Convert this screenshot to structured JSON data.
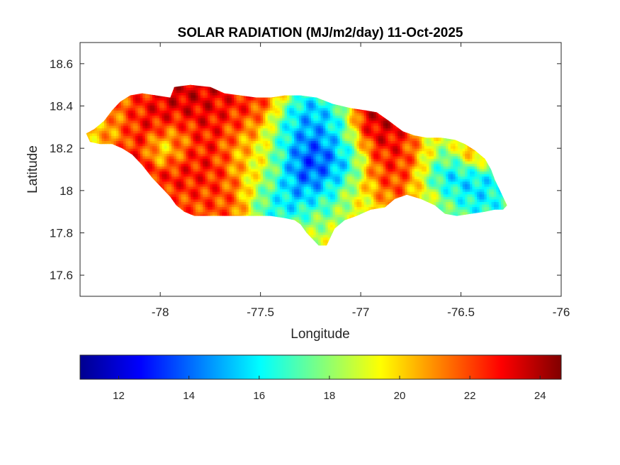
{
  "chart_data": {
    "type": "heatmap",
    "title": "SOLAR RADIATION (MJ/m2/day) 11-Oct-2025",
    "xlabel": "Longitude",
    "ylabel": "Latitude",
    "xlim": [
      -78.4,
      -76.0
    ],
    "ylim": [
      17.5,
      18.7
    ],
    "xticks": [
      -78,
      -77.5,
      -77,
      -76.5,
      -76
    ],
    "xtick_labels": [
      "-78",
      "-77.5",
      "-77",
      "-76.5",
      "-76"
    ],
    "yticks": [
      17.6,
      17.8,
      18.0,
      18.2,
      18.4,
      18.6
    ],
    "ytick_labels": [
      "17.6",
      "17.8",
      "18",
      "18.2",
      "18.4",
      "18.6"
    ],
    "grid": false,
    "colormap": "jet",
    "colorbar": {
      "orientation": "horizontal",
      "location": "below",
      "clim": [
        10.9,
        24.6
      ],
      "ticks": [
        12,
        14,
        16,
        18,
        20,
        22,
        24
      ],
      "tick_labels": [
        "12",
        "14",
        "16",
        "18",
        "20",
        "22",
        "24"
      ]
    },
    "outline": [
      [
        -78.37,
        18.27
      ],
      [
        -78.33,
        18.29
      ],
      [
        -78.28,
        18.33
      ],
      [
        -78.24,
        18.38
      ],
      [
        -78.2,
        18.42
      ],
      [
        -78.15,
        18.45
      ],
      [
        -78.09,
        18.46
      ],
      [
        -78.02,
        18.45
      ],
      [
        -77.95,
        18.44
      ],
      [
        -77.93,
        18.49
      ],
      [
        -77.85,
        18.5
      ],
      [
        -77.75,
        18.49
      ],
      [
        -77.68,
        18.46
      ],
      [
        -77.6,
        18.45
      ],
      [
        -77.52,
        18.44
      ],
      [
        -77.45,
        18.44
      ],
      [
        -77.38,
        18.45
      ],
      [
        -77.3,
        18.45
      ],
      [
        -77.22,
        18.44
      ],
      [
        -77.14,
        18.41
      ],
      [
        -77.05,
        18.39
      ],
      [
        -76.98,
        18.38
      ],
      [
        -76.92,
        18.37
      ],
      [
        -76.86,
        18.33
      ],
      [
        -76.79,
        18.28
      ],
      [
        -76.73,
        18.26
      ],
      [
        -76.67,
        18.25
      ],
      [
        -76.6,
        18.25
      ],
      [
        -76.53,
        18.24
      ],
      [
        -76.48,
        18.22
      ],
      [
        -76.43,
        18.19
      ],
      [
        -76.38,
        18.15
      ],
      [
        -76.35,
        18.1
      ],
      [
        -76.33,
        18.05
      ],
      [
        -76.3,
        17.99
      ],
      [
        -76.27,
        17.93
      ],
      [
        -76.29,
        17.91
      ],
      [
        -76.33,
        17.91
      ],
      [
        -76.38,
        17.9
      ],
      [
        -76.45,
        17.89
      ],
      [
        -76.52,
        17.88
      ],
      [
        -76.58,
        17.89
      ],
      [
        -76.63,
        17.93
      ],
      [
        -76.7,
        17.96
      ],
      [
        -76.77,
        17.98
      ],
      [
        -76.83,
        17.96
      ],
      [
        -76.88,
        17.92
      ],
      [
        -76.95,
        17.91
      ],
      [
        -77.02,
        17.88
      ],
      [
        -77.08,
        17.86
      ],
      [
        -77.13,
        17.82
      ],
      [
        -77.15,
        17.78
      ],
      [
        -77.17,
        17.74
      ],
      [
        -77.21,
        17.74
      ],
      [
        -77.23,
        17.76
      ],
      [
        -77.27,
        17.8
      ],
      [
        -77.3,
        17.84
      ],
      [
        -77.33,
        17.86
      ],
      [
        -77.38,
        17.87
      ],
      [
        -77.45,
        17.88
      ],
      [
        -77.52,
        17.88
      ],
      [
        -77.6,
        17.88
      ],
      [
        -77.68,
        17.88
      ],
      [
        -77.76,
        17.88
      ],
      [
        -77.83,
        17.88
      ],
      [
        -77.88,
        17.9
      ],
      [
        -77.92,
        17.93
      ],
      [
        -77.95,
        17.97
      ],
      [
        -77.99,
        18.01
      ],
      [
        -78.04,
        18.06
      ],
      [
        -78.09,
        18.12
      ],
      [
        -78.14,
        18.17
      ],
      [
        -78.19,
        18.2
      ],
      [
        -78.24,
        18.22
      ],
      [
        -78.3,
        18.22
      ],
      [
        -78.35,
        18.23
      ],
      [
        -78.37,
        18.27
      ]
    ],
    "field": {
      "background_value": 20.5,
      "features": [
        {
          "lon": -78.2,
          "lat": 18.35,
          "value": 21.0,
          "r": 0.14
        },
        {
          "lon": -78.3,
          "lat": 18.28,
          "value": 19.5,
          "r": 0.08
        },
        {
          "lon": -78.05,
          "lat": 18.28,
          "value": 24.0,
          "r": 0.13
        },
        {
          "lon": -77.85,
          "lat": 18.4,
          "value": 24.0,
          "r": 0.16
        },
        {
          "lon": -77.7,
          "lat": 18.3,
          "value": 22.5,
          "r": 0.12
        },
        {
          "lon": -78.0,
          "lat": 18.2,
          "value": 16.5,
          "r": 0.05
        },
        {
          "lon": -77.92,
          "lat": 18.24,
          "value": 18.5,
          "r": 0.07
        },
        {
          "lon": -77.8,
          "lat": 18.12,
          "value": 23.0,
          "r": 0.1
        },
        {
          "lon": -77.75,
          "lat": 17.95,
          "value": 22.0,
          "r": 0.1
        },
        {
          "lon": -77.58,
          "lat": 18.2,
          "value": 19.0,
          "r": 0.09
        },
        {
          "lon": -77.55,
          "lat": 18.38,
          "value": 22.5,
          "r": 0.1
        },
        {
          "lon": -77.48,
          "lat": 18.1,
          "value": 20.0,
          "r": 0.1
        },
        {
          "lon": -77.38,
          "lat": 18.25,
          "value": 16.0,
          "r": 0.09
        },
        {
          "lon": -77.28,
          "lat": 18.3,
          "value": 14.0,
          "r": 0.09
        },
        {
          "lon": -77.3,
          "lat": 18.08,
          "value": 11.5,
          "r": 0.1
        },
        {
          "lon": -77.25,
          "lat": 18.18,
          "value": 13.0,
          "r": 0.07
        },
        {
          "lon": -77.4,
          "lat": 17.95,
          "value": 15.5,
          "r": 0.09
        },
        {
          "lon": -77.2,
          "lat": 17.97,
          "value": 16.5,
          "r": 0.08
        },
        {
          "lon": -77.15,
          "lat": 18.3,
          "value": 15.5,
          "r": 0.07
        },
        {
          "lon": -77.08,
          "lat": 18.15,
          "value": 14.5,
          "r": 0.08
        },
        {
          "lon": -77.22,
          "lat": 17.82,
          "value": 18.5,
          "r": 0.08
        },
        {
          "lon": -77.02,
          "lat": 17.95,
          "value": 19.0,
          "r": 0.07
        },
        {
          "lon": -76.93,
          "lat": 18.28,
          "value": 24.0,
          "r": 0.1
        },
        {
          "lon": -76.88,
          "lat": 18.08,
          "value": 22.0,
          "r": 0.09
        },
        {
          "lon": -76.78,
          "lat": 18.18,
          "value": 23.0,
          "r": 0.09
        },
        {
          "lon": -76.65,
          "lat": 18.2,
          "value": 18.0,
          "r": 0.08
        },
        {
          "lon": -76.6,
          "lat": 18.05,
          "value": 15.0,
          "r": 0.08
        },
        {
          "lon": -76.48,
          "lat": 18.0,
          "value": 14.5,
          "r": 0.09
        },
        {
          "lon": -76.38,
          "lat": 17.97,
          "value": 16.0,
          "r": 0.07
        },
        {
          "lon": -76.55,
          "lat": 17.92,
          "value": 18.5,
          "r": 0.07
        },
        {
          "lon": -76.68,
          "lat": 17.96,
          "value": 21.0,
          "r": 0.06
        },
        {
          "lon": -76.45,
          "lat": 18.18,
          "value": 21.5,
          "r": 0.06
        }
      ]
    }
  }
}
